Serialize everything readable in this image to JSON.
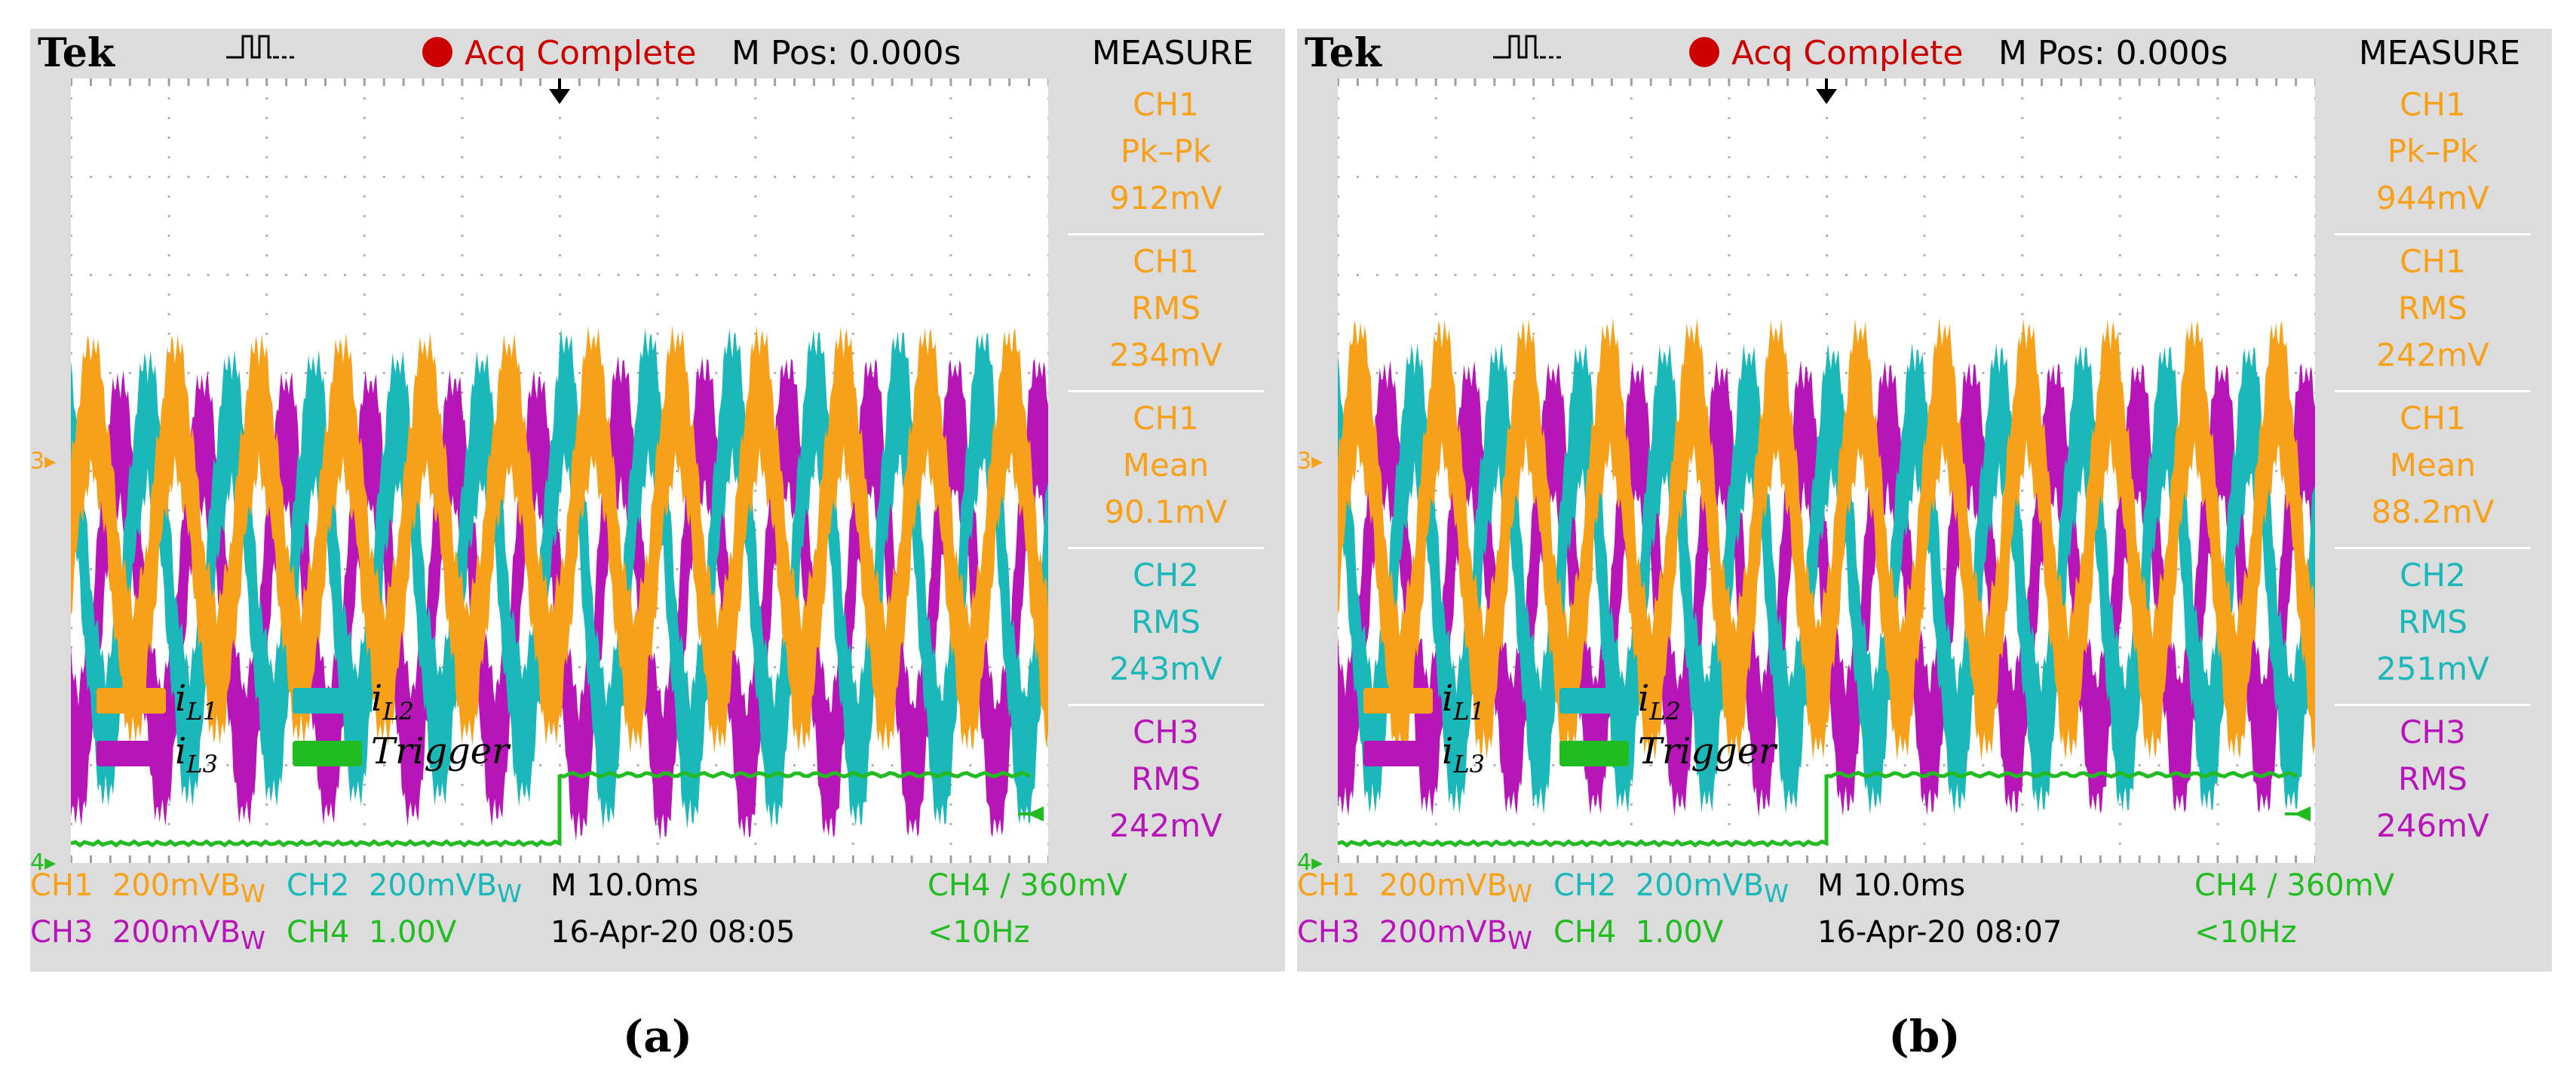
{
  "chart_data": [
    {
      "type": "line",
      "panel_label": "(a)",
      "header": {
        "brand": "Tek",
        "acq_status": "Acq Complete",
        "m_pos": "M Pos: 0.000s",
        "menu_title": "MEASURE"
      },
      "measurements": [
        {
          "ch": "CH1",
          "name": "Pk–Pk",
          "value": "912mV",
          "color": "#f7a11a"
        },
        {
          "ch": "CH1",
          "name": "RMS",
          "value": "234mV",
          "color": "#f7a11a"
        },
        {
          "ch": "CH1",
          "name": "Mean",
          "value": "90.1mV",
          "color": "#f7a11a"
        },
        {
          "ch": "CH2",
          "name": "RMS",
          "value": "243mV",
          "color": "#1ab8b8"
        },
        {
          "ch": "CH3",
          "name": "RMS",
          "value": "242mV",
          "color": "#b815b8"
        }
      ],
      "status": {
        "ch1": "CH1",
        "ch1_scale": "200mVB",
        "ch1_bw": "W",
        "ch2": "CH2",
        "ch2_scale": "200mVB",
        "ch2_bw": "W",
        "ch3": "CH3",
        "ch3_scale": "200mVB",
        "ch3_bw": "W",
        "ch4": "CH4",
        "ch4_scale": "1.00V",
        "timebase": "M 10.0ms",
        "date": "16-Apr-20 08:05",
        "trigger_ch": "CH4",
        "trigger_symbol": "/",
        "trigger_level": "360mV",
        "trigger_freq": "<10Hz"
      },
      "legend": [
        "i_{L1}",
        "i_{L2}",
        "i_{L3}",
        "Trigger"
      ],
      "series": [
        {
          "name": "i_L1",
          "color": "#f7a11a",
          "cycles": 11.7,
          "center_div": 3.3,
          "amp_pre_div": 1.7,
          "amp_post_div": 1.8,
          "phase": 0.0
        },
        {
          "name": "i_L2",
          "color": "#1ab8b8",
          "cycles": 11.7,
          "center_div": 2.9,
          "amp_pre_div": 2.0,
          "amp_post_div": 2.3,
          "phase": 2.09
        },
        {
          "name": "i_L3",
          "color": "#b815b8",
          "cycles": 11.7,
          "center_div": 2.7,
          "amp_pre_div": 2.0,
          "amp_post_div": 2.2,
          "phase": 4.19
        },
        {
          "name": "Trigger",
          "color": "#22bb22",
          "low_div": 0.2,
          "high_div": 0.9,
          "step_at_div": 5.0
        }
      ],
      "axes": {
        "x_divisions": 10,
        "y_divisions": 8,
        "x_unit": "10.0ms/div"
      }
    },
    {
      "type": "line",
      "panel_label": "(b)",
      "header": {
        "brand": "Tek",
        "acq_status": "Acq Complete",
        "m_pos": "M Pos: 0.000s",
        "menu_title": "MEASURE"
      },
      "measurements": [
        {
          "ch": "CH1",
          "name": "Pk–Pk",
          "value": "944mV",
          "color": "#f7a11a"
        },
        {
          "ch": "CH1",
          "name": "RMS",
          "value": "242mV",
          "color": "#f7a11a"
        },
        {
          "ch": "CH1",
          "name": "Mean",
          "value": "88.2mV",
          "color": "#f7a11a"
        },
        {
          "ch": "CH2",
          "name": "RMS",
          "value": "251mV",
          "color": "#1ab8b8"
        },
        {
          "ch": "CH3",
          "name": "RMS",
          "value": "246mV",
          "color": "#b815b8"
        }
      ],
      "status": {
        "ch1": "CH1",
        "ch1_scale": "200mVB",
        "ch1_bw": "W",
        "ch2": "CH2",
        "ch2_scale": "200mVB",
        "ch2_bw": "W",
        "ch3": "CH3",
        "ch3_scale": "200mVB",
        "ch3_bw": "W",
        "ch4": "CH4",
        "ch4_scale": "1.00V",
        "timebase": "M 10.0ms",
        "date": "16-Apr-20 08:07",
        "trigger_ch": "CH4",
        "trigger_symbol": "/",
        "trigger_level": "360mV",
        "trigger_freq": "<10Hz"
      },
      "legend": [
        "i_{L1}",
        "i_{L2}",
        "i_{L3}",
        "Trigger"
      ],
      "series": [
        {
          "name": "i_L1",
          "color": "#f7a11a",
          "cycles": 11.7,
          "center_div": 3.3,
          "amp_pre_div": 1.9,
          "amp_post_div": 1.9,
          "phase": 0.0
        },
        {
          "name": "i_L2",
          "color": "#1ab8b8",
          "cycles": 11.7,
          "center_div": 2.9,
          "amp_pre_div": 2.1,
          "amp_post_div": 2.1,
          "phase": 2.09
        },
        {
          "name": "i_L3",
          "color": "#b815b8",
          "cycles": 11.7,
          "center_div": 2.8,
          "amp_pre_div": 2.0,
          "amp_post_div": 2.0,
          "phase": 4.19
        },
        {
          "name": "Trigger",
          "color": "#22bb22",
          "low_div": 0.2,
          "high_div": 0.9,
          "step_at_div": 5.0
        }
      ],
      "axes": {
        "x_divisions": 10,
        "y_divisions": 8,
        "x_unit": "10.0ms/div"
      }
    }
  ],
  "legend_labels": {
    "l1": "i",
    "l1_sub": "L1",
    "l2": "i",
    "l2_sub": "L2",
    "l3": "i",
    "l3_sub": "L3",
    "trig": "Trigger"
  },
  "markers": {
    "ch3_ground": "3",
    "ch4_ground": "4"
  }
}
